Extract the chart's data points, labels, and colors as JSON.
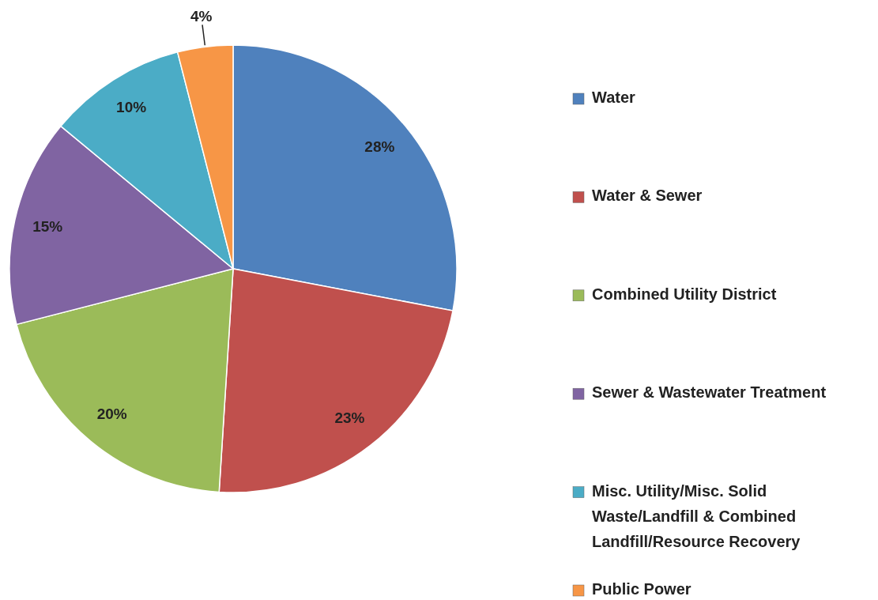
{
  "chart_data": {
    "type": "pie",
    "categories": [
      "Water",
      "Water & Sewer",
      "Combined Utility District",
      "Sewer & Wastewater Treatment",
      "Misc. Utility/Misc.  Solid Waste/Landfill & Combined Landfill/Resource Recovery",
      "Public Power"
    ],
    "values": [
      28,
      23,
      20,
      15,
      10,
      4
    ],
    "value_labels": [
      "28%",
      "23%",
      "20%",
      "15%",
      "10%",
      "4%"
    ],
    "colors": [
      "#4f81bd",
      "#c0504d",
      "#9bbb59",
      "#8064a2",
      "#4bacc6",
      "#f79646"
    ],
    "legend": "right"
  }
}
